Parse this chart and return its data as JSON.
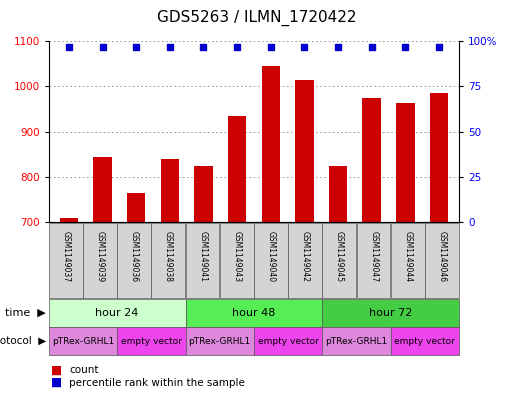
{
  "title": "GDS5263 / ILMN_1720422",
  "samples": [
    "GSM1149037",
    "GSM1149039",
    "GSM1149036",
    "GSM1149038",
    "GSM1149041",
    "GSM1149043",
    "GSM1149040",
    "GSM1149042",
    "GSM1149045",
    "GSM1149047",
    "GSM1149044",
    "GSM1149046"
  ],
  "counts": [
    710,
    845,
    765,
    840,
    825,
    935,
    1045,
    1015,
    825,
    975,
    963,
    985
  ],
  "percentiles": [
    97,
    97,
    97,
    97,
    97,
    97,
    97,
    97,
    97,
    97,
    97,
    97
  ],
  "ylim_left": [
    700,
    1100
  ],
  "ylim_right": [
    0,
    100
  ],
  "yticks_left": [
    700,
    800,
    900,
    1000,
    1100
  ],
  "yticks_right": [
    0,
    25,
    50,
    75,
    100
  ],
  "bar_color": "#cc0000",
  "dot_color": "#0000cc",
  "time_groups": [
    {
      "label": "hour 24",
      "start": 0,
      "end": 4,
      "color": "#ccffcc"
    },
    {
      "label": "hour 48",
      "start": 4,
      "end": 8,
      "color": "#55ee55"
    },
    {
      "label": "hour 72",
      "start": 8,
      "end": 12,
      "color": "#44cc44"
    }
  ],
  "protocol_groups": [
    {
      "label": "pTRex-GRHL1",
      "start": 0,
      "end": 2,
      "color": "#dd88dd"
    },
    {
      "label": "empty vector",
      "start": 2,
      "end": 4,
      "color": "#ee44ee"
    },
    {
      "label": "pTRex-GRHL1",
      "start": 4,
      "end": 6,
      "color": "#dd88dd"
    },
    {
      "label": "empty vector",
      "start": 6,
      "end": 8,
      "color": "#ee44ee"
    },
    {
      "label": "pTRex-GRHL1",
      "start": 8,
      "end": 10,
      "color": "#dd88dd"
    },
    {
      "label": "empty vector",
      "start": 10,
      "end": 12,
      "color": "#ee44ee"
    }
  ],
  "bg_color": "#ffffff",
  "grid_color": "#888888",
  "title_fontsize": 11,
  "tick_fontsize": 7.5,
  "sample_fontsize": 5.5,
  "row_fontsize": 8,
  "proto_fontsize": 6.5,
  "legend_fontsize": 7.5
}
